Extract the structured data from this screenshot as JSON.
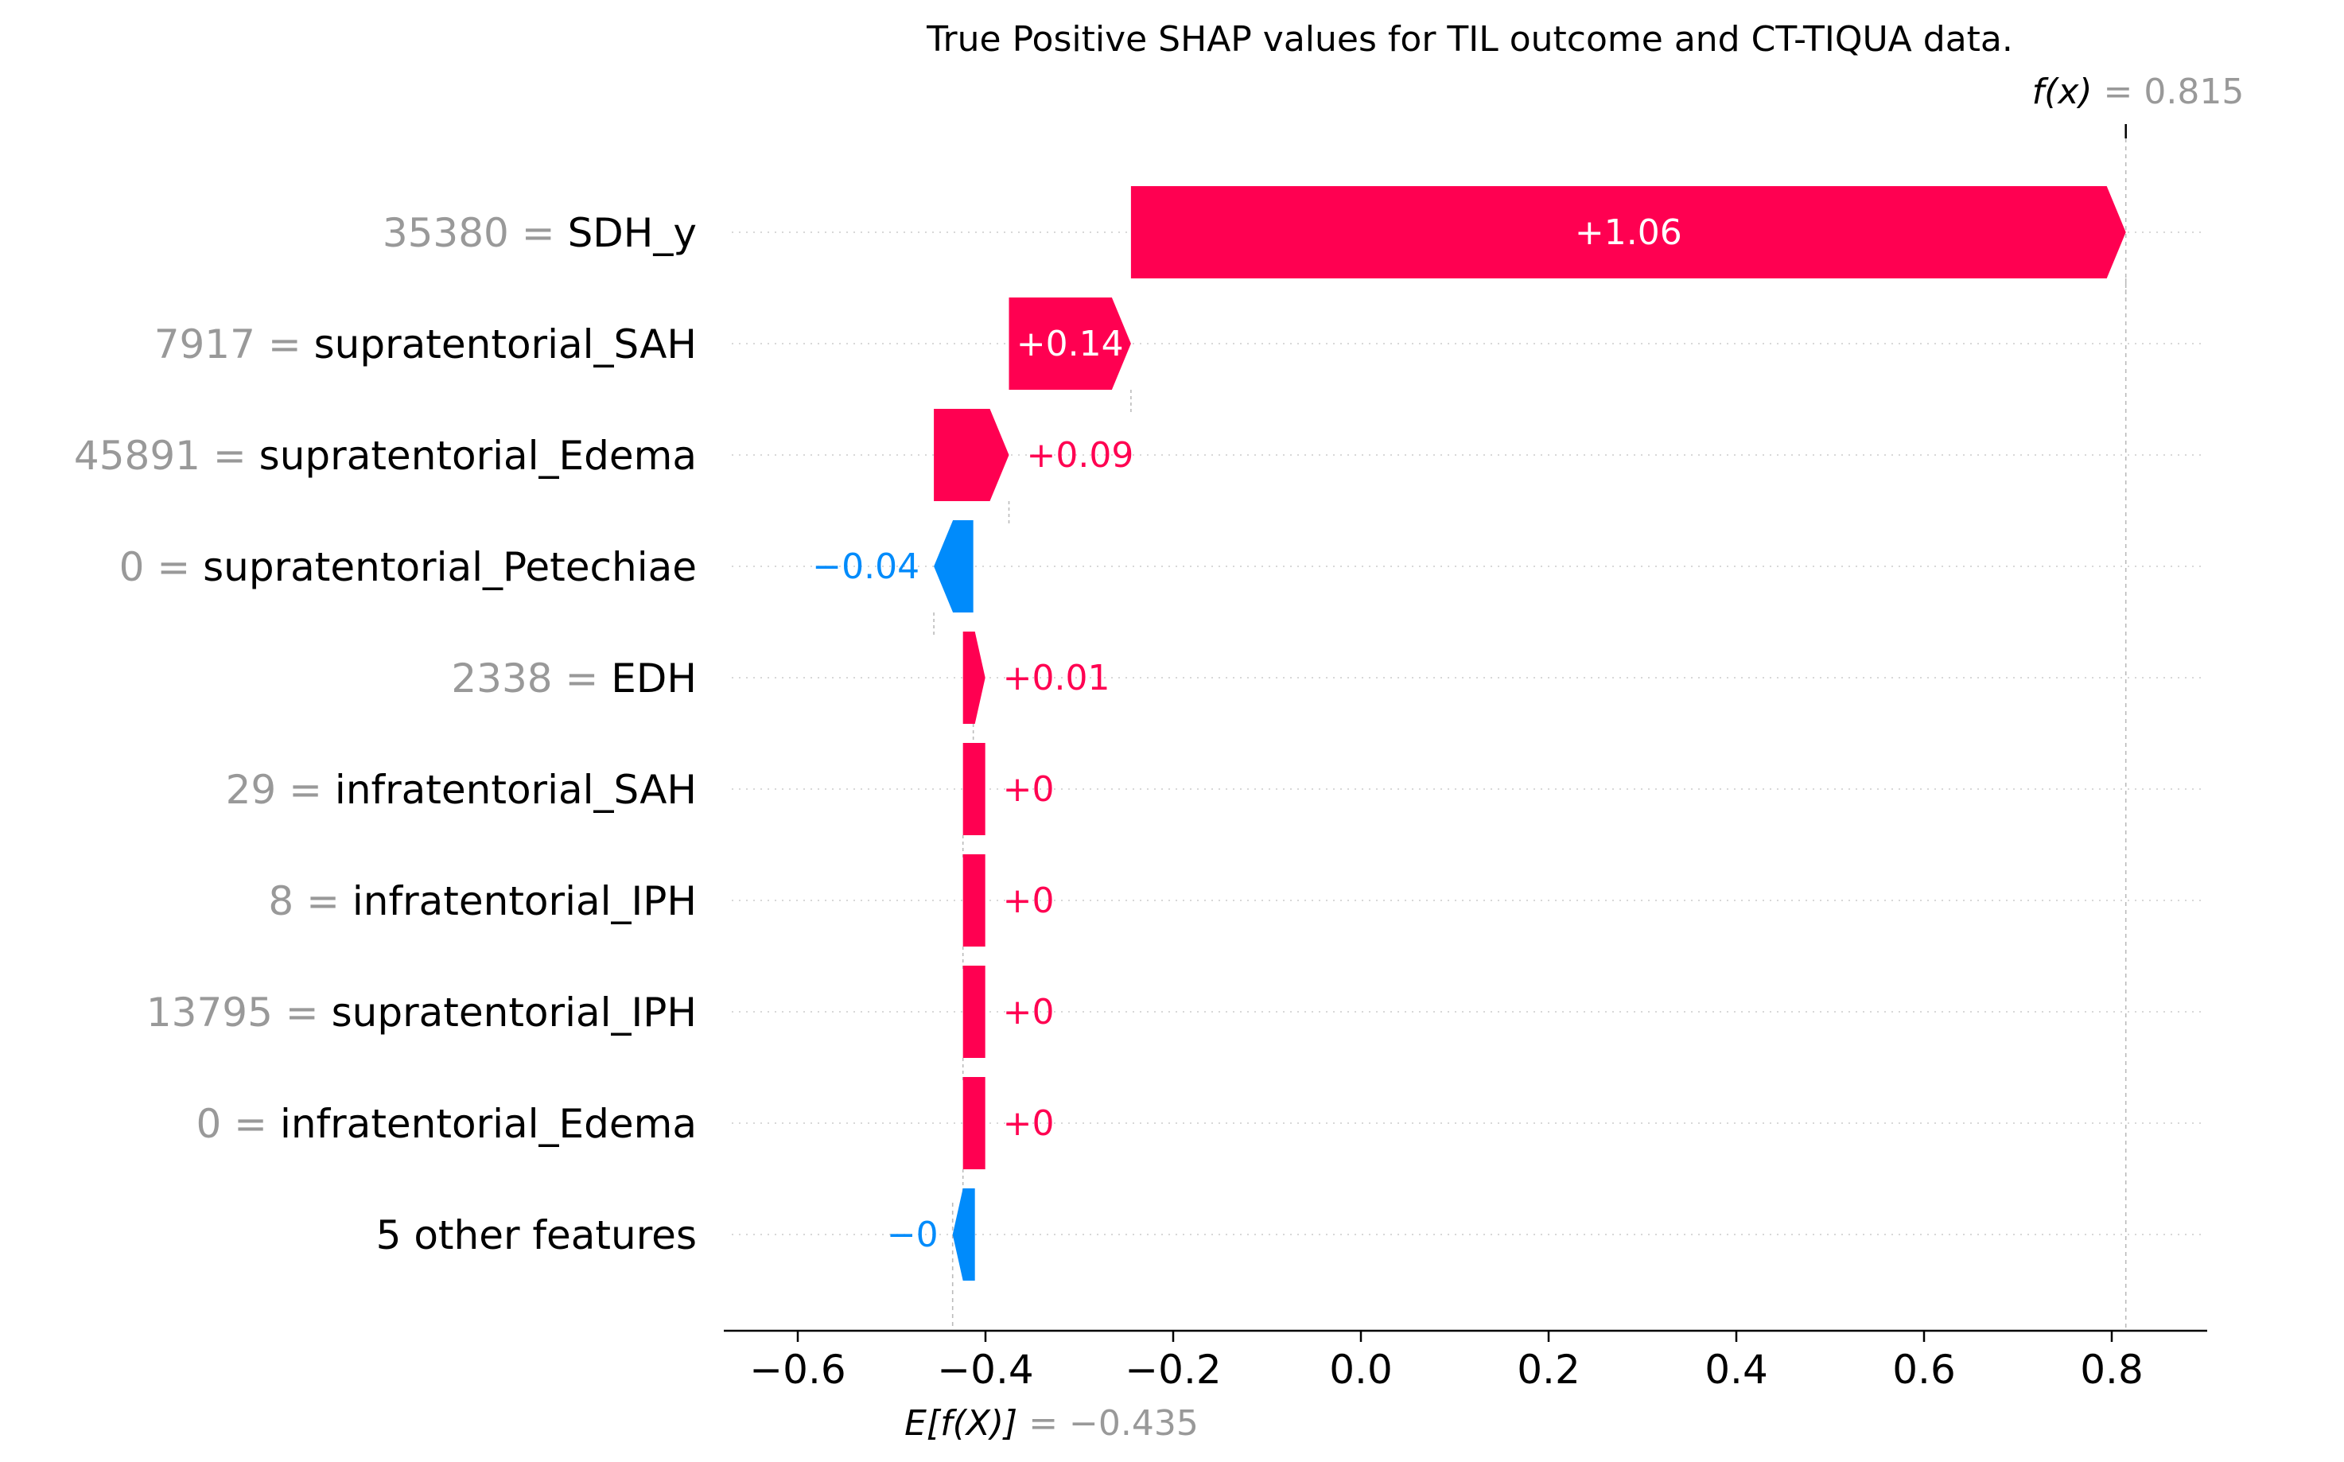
{
  "chart_data": {
    "type": "waterfall",
    "title": "True Positive SHAP values for TIL outcome and CT-TIQUA data.",
    "base_value": -0.435,
    "base_label": "E[f(X)] = −0.435",
    "base_label_parts": {
      "symbol": "E[f(X)]",
      "eq": " = −0.435"
    },
    "output_value": 0.815,
    "output_label": "f(x) = 0.815",
    "output_label_parts": {
      "symbol": "f(x)",
      "eq": " = 0.815"
    },
    "xlim": [
      -0.68,
      0.89
    ],
    "xticks": [
      -0.6,
      -0.4,
      -0.2,
      0.0,
      0.2,
      0.4,
      0.6,
      0.8
    ],
    "xtick_labels": [
      "−0.6",
      "−0.4",
      "−0.2",
      "0.0",
      "0.2",
      "0.4",
      "0.6",
      "0.8"
    ],
    "features": [
      {
        "value": "35380",
        "name": "SDH_y",
        "shap": 1.06,
        "label": "+1.06",
        "start": -0.245,
        "end": 0.815,
        "label_inside": true
      },
      {
        "value": "7917",
        "name": "supratentorial_SAH",
        "shap": 0.14,
        "label": "+0.14",
        "start": -0.375,
        "end": -0.245,
        "label_inside": true
      },
      {
        "value": "45891",
        "name": "supratentorial_Edema",
        "shap": 0.09,
        "label": "+0.09",
        "start": -0.455,
        "end": -0.375,
        "label_inside": false
      },
      {
        "value": "0",
        "name": "supratentorial_Petechiae",
        "shap": -0.04,
        "label": "−0.04",
        "start": -0.413,
        "end": -0.455,
        "label_inside": false
      },
      {
        "value": "2338",
        "name": "EDH",
        "shap": 0.01,
        "label": "+0.01",
        "start": -0.424,
        "end": -0.413,
        "label_inside": false
      },
      {
        "value": "29",
        "name": "infratentorial_SAH",
        "shap": 0.0,
        "label": "+0",
        "start": -0.424,
        "end": -0.424,
        "label_inside": false
      },
      {
        "value": "8",
        "name": "infratentorial_IPH",
        "shap": 0.0,
        "label": "+0",
        "start": -0.424,
        "end": -0.424,
        "label_inside": false
      },
      {
        "value": "13795",
        "name": "supratentorial_IPH",
        "shap": 0.0,
        "label": "+0",
        "start": -0.424,
        "end": -0.424,
        "label_inside": false
      },
      {
        "value": "0",
        "name": "infratentorial_Edema",
        "shap": 0.0,
        "label": "+0",
        "start": -0.424,
        "end": -0.424,
        "label_inside": false
      },
      {
        "value": "",
        "name": "5 other features",
        "shap": -0.0,
        "label": "−0",
        "start": -0.424,
        "end": -0.435,
        "label_inside": false
      }
    ],
    "colors": {
      "positive": "#ff0051",
      "negative": "#008bfb",
      "feature_value": "#999999",
      "text": "#000000"
    }
  }
}
